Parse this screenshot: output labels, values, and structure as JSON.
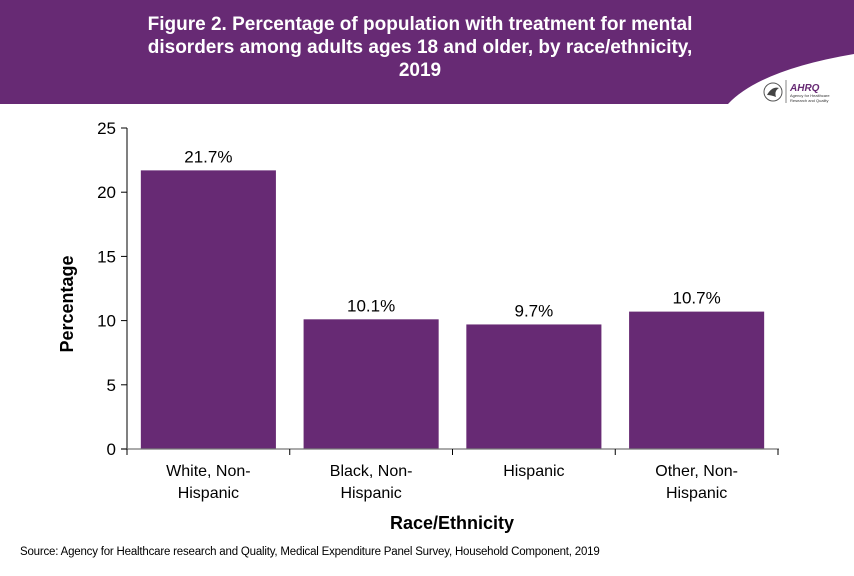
{
  "header": {
    "title": "Figure 2. Percentage of population with treatment for mental\ndisorders among adults ages 18 and older, by race/ethnicity,\n2019",
    "background_color": "#672a74",
    "logo": {
      "icon": "hhs-eagle-icon",
      "name": "AHRQ",
      "tagline_line1": "Agency for Healthcare",
      "tagline_line2": "Research and Quality"
    }
  },
  "chart_data": {
    "type": "bar",
    "title": "Figure 2. Percentage of population with treatment for mental disorders among adults ages 18 and older, by race/ethnicity, 2019",
    "categories": [
      "White, Non-Hispanic",
      "Black, Non-Hispanic",
      "Hispanic",
      "Other, Non-Hispanic"
    ],
    "category_lines": [
      [
        "White, Non-",
        "Hispanic"
      ],
      [
        "Black, Non-",
        "Hispanic"
      ],
      [
        "Hispanic"
      ],
      [
        "Other, Non-",
        "Hispanic"
      ]
    ],
    "values": [
      21.7,
      10.1,
      9.7,
      10.7
    ],
    "data_labels": [
      "21.7%",
      "10.1%",
      "9.7%",
      "10.7%"
    ],
    "xlabel": "Race/Ethnicity",
    "ylabel": "Percentage",
    "ylim": [
      0,
      25
    ],
    "yticks": [
      0,
      5,
      10,
      15,
      20,
      25
    ],
    "grid": false,
    "legend": "none",
    "bar_color": "#672a74"
  },
  "footer": {
    "source": "Source: Agency for Healthcare research and Quality, Medical Expenditure Panel Survey,  Household Component, 2019"
  }
}
